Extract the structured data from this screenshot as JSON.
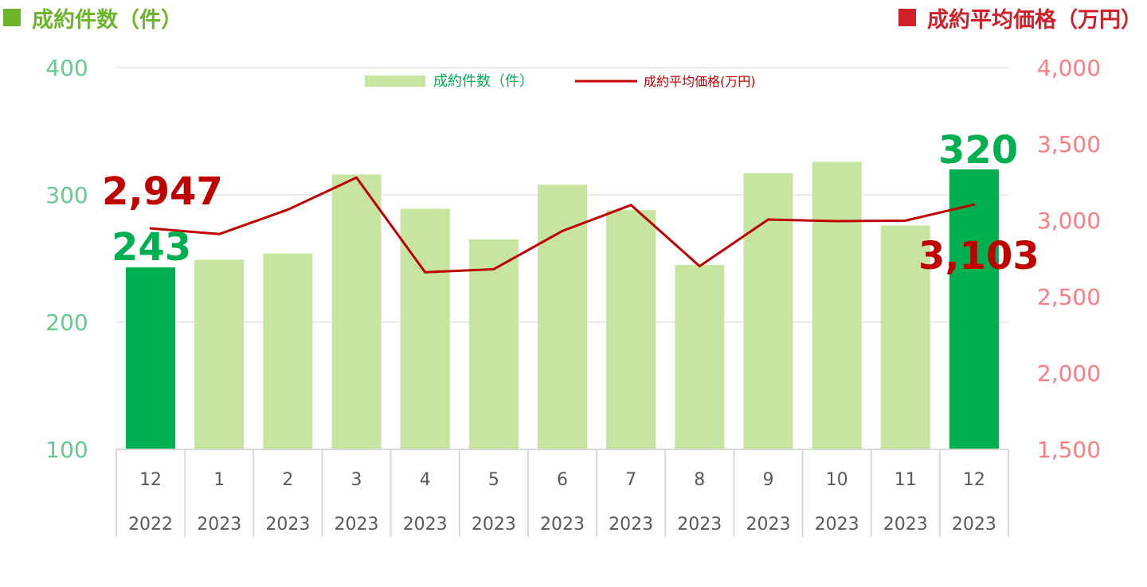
{
  "header": {
    "left_title": "成約件数（件）",
    "right_title": "成約平均価格（万円）"
  },
  "colors": {
    "bar": "#c5e5a0",
    "bar_highlight": "#00b050",
    "line": "#c00000",
    "left_axis": "#66c98f",
    "right_axis": "#ff7c80",
    "grid": "#d9d9d9"
  },
  "chart_data": {
    "type": "bar",
    "categories": [
      "12",
      "1",
      "2",
      "3",
      "4",
      "5",
      "6",
      "7",
      "8",
      "9",
      "10",
      "11",
      "12"
    ],
    "years": [
      "2022",
      "2023",
      "2023",
      "2023",
      "2023",
      "2023",
      "2023",
      "2023",
      "2023",
      "2023",
      "2023",
      "2023",
      "2023"
    ],
    "series": [
      {
        "name": "成約件数（件）",
        "type": "bar",
        "axis": "left",
        "values": [
          243,
          249,
          254,
          316,
          289,
          265,
          308,
          288,
          245,
          317,
          326,
          276,
          320
        ],
        "highlight": [
          0,
          12
        ]
      },
      {
        "name": "成約平均価格(万円)",
        "type": "line",
        "axis": "right",
        "values": [
          2947,
          2910,
          3070,
          3280,
          2660,
          2680,
          2930,
          3100,
          2700,
          3005,
          2995,
          2998,
          3103
        ]
      }
    ],
    "left_axis": {
      "min": 100,
      "max": 400,
      "ticks": [
        "100",
        "200",
        "300",
        "400"
      ]
    },
    "right_axis": {
      "min": 1500,
      "max": 4000,
      "ticks": [
        "1,500",
        "2,000",
        "2,500",
        "3,000",
        "3,500",
        "4,000"
      ]
    },
    "annotations": [
      {
        "text": "2,947",
        "series": "line",
        "index": 0,
        "color": "#c00000"
      },
      {
        "text": "243",
        "series": "bar",
        "index": 0,
        "color": "#00b050"
      },
      {
        "text": "320",
        "series": "bar",
        "index": 12,
        "color": "#00b050"
      },
      {
        "text": "3,103",
        "series": "line",
        "index": 12,
        "color": "#c00000"
      }
    ],
    "legend_position": "top-center",
    "grid": true
  }
}
